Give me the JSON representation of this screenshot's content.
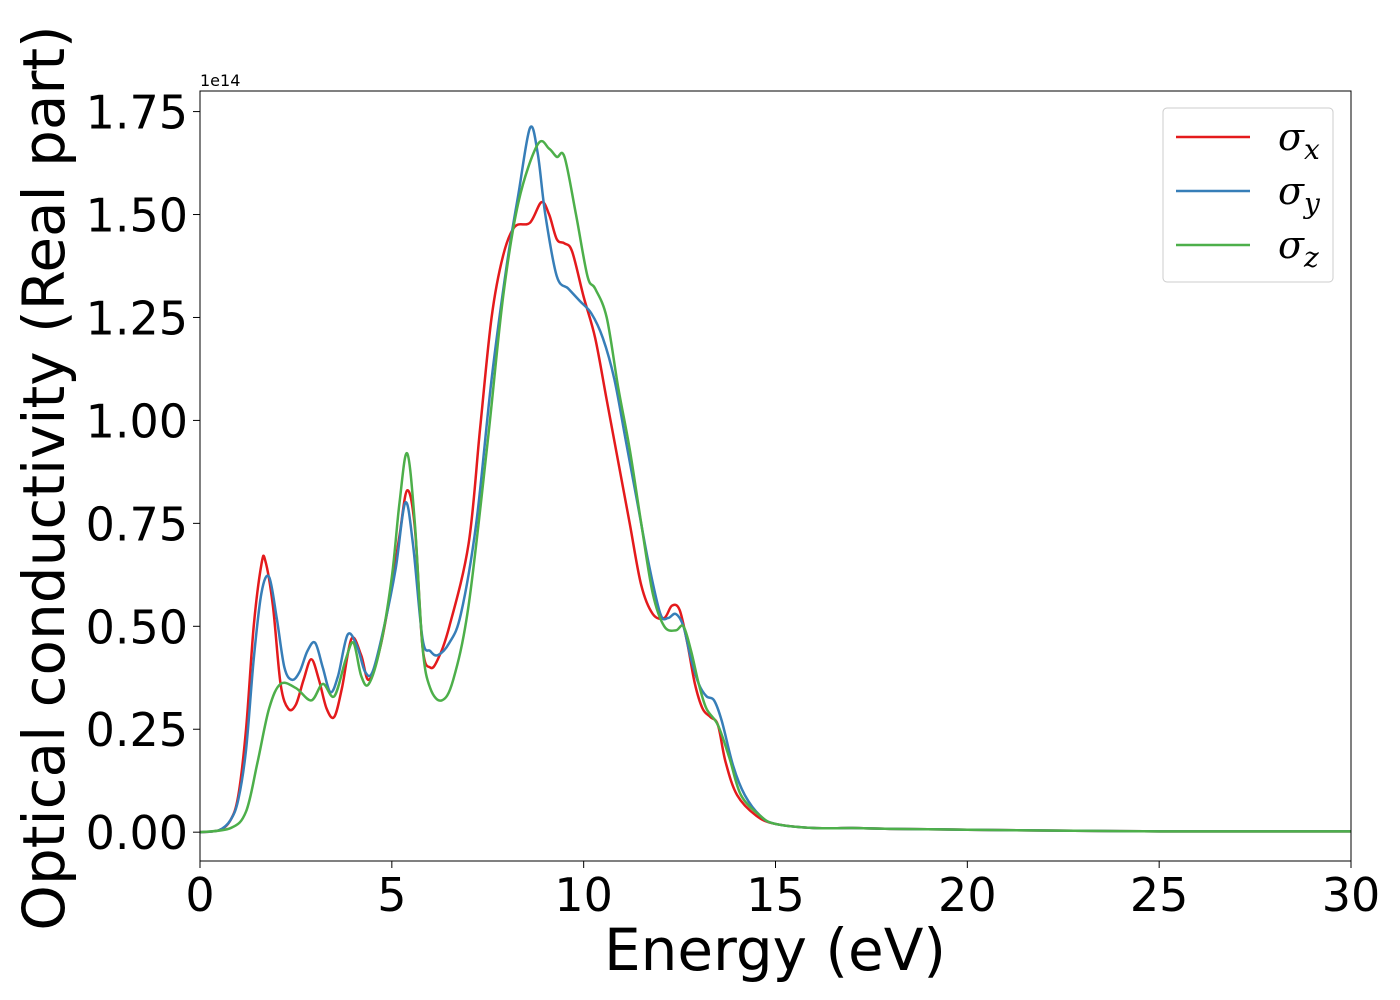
{
  "chart_data": {
    "type": "line",
    "title": "",
    "xlabel": "Energy (eV)",
    "ylabel": "Optical conductivity (Real part)",
    "y_offset_text": "1e14",
    "xlim": [
      0,
      30
    ],
    "ylim": [
      -0.07,
      1.8
    ],
    "x_ticks": [
      0,
      5,
      10,
      15,
      20,
      25,
      30
    ],
    "x_tick_labels": [
      "0",
      "5",
      "10",
      "15",
      "20",
      "25",
      "30"
    ],
    "y_ticks": [
      0.0,
      0.25,
      0.5,
      0.75,
      1.0,
      1.25,
      1.5,
      1.75
    ],
    "y_tick_labels": [
      "0.00",
      "0.25",
      "0.50",
      "0.75",
      "1.00",
      "1.25",
      "1.50",
      "1.75"
    ],
    "grid": false,
    "legend_position": "top-right",
    "series": [
      {
        "name": "σx",
        "legend_base": "σ",
        "legend_sub": "x",
        "color": "#e41a1c",
        "x": [
          0,
          0.5,
          0.8,
          1.0,
          1.2,
          1.4,
          1.6,
          1.7,
          1.9,
          2.1,
          2.3,
          2.5,
          2.7,
          2.9,
          3.1,
          3.3,
          3.5,
          3.7,
          3.95,
          4.2,
          4.4,
          4.7,
          5.0,
          5.2,
          5.4,
          5.6,
          5.8,
          6.0,
          6.2,
          6.5,
          7.0,
          7.3,
          7.6,
          7.9,
          8.2,
          8.6,
          8.9,
          9.1,
          9.3,
          9.5,
          9.7,
          10.0,
          10.3,
          10.6,
          10.9,
          11.2,
          11.5,
          11.8,
          12.1,
          12.3,
          12.5,
          12.7,
          12.9,
          13.1,
          13.3,
          13.5,
          13.7,
          14.0,
          14.5,
          15.0,
          16.0,
          17.0,
          18.0,
          20.0,
          22.0,
          25.0,
          28.0,
          30.0
        ],
        "values": [
          0.0,
          0.005,
          0.03,
          0.09,
          0.25,
          0.5,
          0.65,
          0.66,
          0.55,
          0.36,
          0.3,
          0.31,
          0.37,
          0.42,
          0.37,
          0.3,
          0.28,
          0.35,
          0.47,
          0.43,
          0.37,
          0.45,
          0.6,
          0.72,
          0.83,
          0.74,
          0.45,
          0.4,
          0.42,
          0.5,
          0.7,
          0.98,
          1.25,
          1.4,
          1.47,
          1.48,
          1.53,
          1.5,
          1.44,
          1.43,
          1.41,
          1.3,
          1.2,
          1.05,
          0.9,
          0.75,
          0.6,
          0.53,
          0.52,
          0.55,
          0.54,
          0.46,
          0.36,
          0.3,
          0.28,
          0.26,
          0.17,
          0.09,
          0.04,
          0.02,
          0.01,
          0.01,
          0.008,
          0.006,
          0.004,
          0.002,
          0.002,
          0.002
        ]
      },
      {
        "name": "σy",
        "legend_base": "σ",
        "legend_sub": "y",
        "color": "#377eb8",
        "x": [
          0,
          0.5,
          0.8,
          1.0,
          1.2,
          1.4,
          1.6,
          1.8,
          2.0,
          2.2,
          2.4,
          2.6,
          2.8,
          3.0,
          3.2,
          3.4,
          3.6,
          3.85,
          4.1,
          4.3,
          4.5,
          4.8,
          5.1,
          5.35,
          5.55,
          5.8,
          6.0,
          6.2,
          6.5,
          6.8,
          7.2,
          7.6,
          8.0,
          8.3,
          8.6,
          8.8,
          9.0,
          9.3,
          9.6,
          9.9,
          10.2,
          10.5,
          10.8,
          11.1,
          11.4,
          11.7,
          12.0,
          12.2,
          12.4,
          12.6,
          12.8,
          13.0,
          13.2,
          13.4,
          13.6,
          13.9,
          14.2,
          14.6,
          15.0,
          16.0,
          17.0,
          18.0,
          20.0,
          22.0,
          25.0,
          28.0,
          30.0
        ],
        "values": [
          0.0,
          0.005,
          0.03,
          0.08,
          0.2,
          0.42,
          0.58,
          0.62,
          0.52,
          0.4,
          0.37,
          0.39,
          0.44,
          0.46,
          0.4,
          0.34,
          0.38,
          0.48,
          0.45,
          0.39,
          0.39,
          0.5,
          0.64,
          0.8,
          0.7,
          0.47,
          0.44,
          0.43,
          0.46,
          0.53,
          0.75,
          1.1,
          1.38,
          1.55,
          1.71,
          1.65,
          1.5,
          1.35,
          1.32,
          1.29,
          1.26,
          1.2,
          1.1,
          0.95,
          0.8,
          0.65,
          0.53,
          0.52,
          0.53,
          0.5,
          0.42,
          0.36,
          0.33,
          0.32,
          0.27,
          0.16,
          0.09,
          0.04,
          0.02,
          0.01,
          0.01,
          0.008,
          0.006,
          0.004,
          0.002,
          0.002,
          0.002
        ]
      },
      {
        "name": "σz",
        "legend_base": "σ",
        "legend_sub": "z",
        "color": "#4daf4a",
        "x": [
          0,
          0.8,
          1.2,
          1.5,
          1.8,
          2.1,
          2.5,
          2.9,
          3.2,
          3.5,
          3.8,
          4.0,
          4.2,
          4.4,
          4.7,
          5.0,
          5.2,
          5.4,
          5.6,
          5.8,
          6.0,
          6.3,
          6.6,
          7.0,
          7.5,
          7.9,
          8.3,
          8.8,
          9.1,
          9.3,
          9.5,
          9.8,
          10.1,
          10.3,
          10.6,
          10.9,
          11.2,
          11.5,
          11.8,
          12.1,
          12.4,
          12.6,
          12.8,
          13.0,
          13.2,
          13.5,
          13.8,
          14.1,
          14.6,
          15.0,
          16.0,
          17.0,
          18.0,
          20.0,
          22.0,
          25.0,
          28.0,
          30.0
        ],
        "values": [
          0.0,
          0.01,
          0.05,
          0.17,
          0.3,
          0.36,
          0.35,
          0.32,
          0.36,
          0.33,
          0.42,
          0.46,
          0.38,
          0.36,
          0.45,
          0.62,
          0.8,
          0.92,
          0.75,
          0.45,
          0.35,
          0.32,
          0.37,
          0.55,
          0.95,
          1.3,
          1.53,
          1.67,
          1.66,
          1.64,
          1.64,
          1.5,
          1.35,
          1.32,
          1.25,
          1.08,
          0.93,
          0.75,
          0.58,
          0.5,
          0.49,
          0.5,
          0.44,
          0.36,
          0.3,
          0.26,
          0.18,
          0.09,
          0.04,
          0.02,
          0.01,
          0.01,
          0.008,
          0.006,
          0.004,
          0.002,
          0.002,
          0.002
        ]
      }
    ]
  }
}
